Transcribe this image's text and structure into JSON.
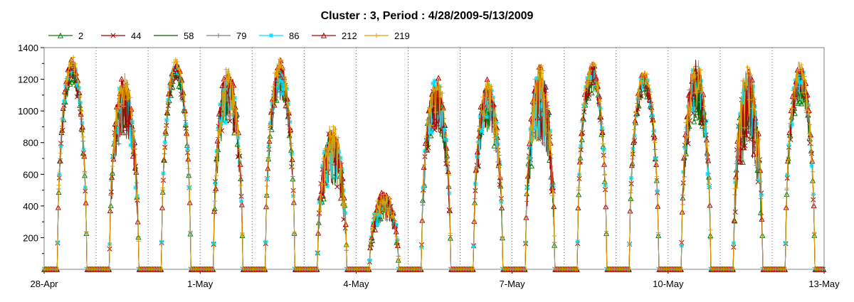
{
  "chart_data": {
    "type": "line",
    "title": "Cluster : 3, Period : 4/28/2009-5/13/2009",
    "xlabel": "",
    "ylabel": "",
    "x_range": [
      "2009-04-28",
      "2009-05-13"
    ],
    "x_ticks": [
      "28-Apr",
      "1-May",
      "4-May",
      "7-May",
      "10-May",
      "13-May"
    ],
    "y_ticks": [
      200,
      400,
      600,
      800,
      1000,
      1200,
      1400
    ],
    "ylim": [
      0,
      1400
    ],
    "grid": "vertical-dotted-daily",
    "legend_position": "top",
    "series": [
      {
        "name": "2",
        "color": "#008000",
        "marker": "triangle"
      },
      {
        "name": "44",
        "color": "#a00000",
        "marker": "x"
      },
      {
        "name": "58",
        "color": "#006400",
        "marker": "none"
      },
      {
        "name": "79",
        "color": "#808080",
        "marker": "plus"
      },
      {
        "name": "86",
        "color": "#00e0ff",
        "marker": "star"
      },
      {
        "name": "212",
        "color": "#b00000",
        "marker": "triangle"
      },
      {
        "name": "219",
        "color": "#e0a000",
        "marker": "plus"
      }
    ],
    "daily_peaks": [
      {
        "day": "2009-04-28",
        "peak": 1300,
        "variability": 0.08
      },
      {
        "day": "2009-04-29",
        "peak": 1200,
        "variability": 0.3
      },
      {
        "day": "2009-04-30",
        "peak": 1280,
        "variability": 0.05
      },
      {
        "day": "2009-05-01",
        "peak": 1250,
        "variability": 0.25
      },
      {
        "day": "2009-05-02",
        "peak": 1290,
        "variability": 0.15
      },
      {
        "day": "2009-05-03",
        "peak": 900,
        "variability": 0.4
      },
      {
        "day": "2009-05-04",
        "peak": 480,
        "variability": 0.35
      },
      {
        "day": "2009-05-05",
        "peak": 1200,
        "variability": 0.25
      },
      {
        "day": "2009-05-06",
        "peak": 1180,
        "variability": 0.25
      },
      {
        "day": "2009-05-07",
        "peak": 1250,
        "variability": 0.35
      },
      {
        "day": "2009-05-08",
        "peak": 1280,
        "variability": 0.1
      },
      {
        "day": "2009-05-09",
        "peak": 1220,
        "variability": 0.08
      },
      {
        "day": "2009-05-10",
        "peak": 1300,
        "variability": 0.25
      },
      {
        "day": "2009-05-11",
        "peak": 1250,
        "variability": 0.4
      },
      {
        "day": "2009-05-12",
        "peak": 1270,
        "variability": 0.15
      }
    ]
  }
}
